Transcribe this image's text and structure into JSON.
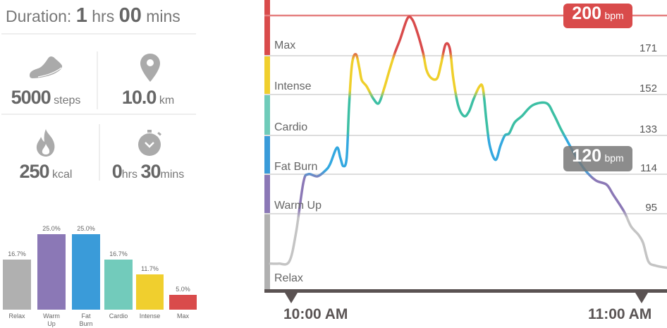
{
  "duration": {
    "label": "Duration:",
    "hours": "1",
    "hours_unit": "hrs",
    "minutes": "00",
    "minutes_unit": "mins"
  },
  "stats": [
    {
      "icon": "shoe-icon",
      "value": "5000",
      "unit": "steps"
    },
    {
      "icon": "location-pin-icon",
      "value": "10.0",
      "unit": "km"
    },
    {
      "icon": "flame-icon",
      "value": "250",
      "unit": "kcal"
    },
    {
      "icon": "stopwatch-icon",
      "hours": "0",
      "hours_unit": "hrs",
      "minutes": "30",
      "minutes_unit": "mins"
    }
  ],
  "chart_data": [
    {
      "type": "bar",
      "categories": [
        "Relax",
        "Warm Up",
        "Fat Burn",
        "Cardio",
        "Intense",
        "Max"
      ],
      "values": [
        16.7,
        25.0,
        25.0,
        16.7,
        11.7,
        5.0
      ],
      "labels": [
        "16.7%",
        "25.0%",
        "25.0%",
        "16.7%",
        "11.7%",
        "5.0%"
      ],
      "colors": [
        "#b0b0b0",
        "#8b78b6",
        "#3a9bd9",
        "#72cbbb",
        "#f0cf2e",
        "#d94b4b"
      ],
      "ylim": [
        0,
        25
      ]
    },
    {
      "type": "line",
      "zones": [
        {
          "name": "Max",
          "color": "#d94b4b",
          "upper": 200,
          "lower": 171
        },
        {
          "name": "Intense",
          "color": "#f0cf2e",
          "upper": 171,
          "lower": 152
        },
        {
          "name": "Cardio",
          "color": "#6fcbb9",
          "upper": 152,
          "lower": 133
        },
        {
          "name": "Fat Burn",
          "color": "#3a9bd9",
          "upper": 133,
          "lower": 114
        },
        {
          "name": "Warm Up",
          "color": "#8b78b6",
          "upper": 114,
          "lower": 95
        },
        {
          "name": "Relax",
          "color": "#b0b0b0",
          "upper": 95,
          "lower": 58
        }
      ],
      "y_ticks": [
        "171",
        "152",
        "133",
        "114",
        "95"
      ],
      "max_marker": {
        "value": "200",
        "unit": "bpm",
        "color": "#d94b4b"
      },
      "current_marker": {
        "value": "120",
        "unit": "bpm",
        "color": "#8a8a8a"
      },
      "x_ticks": [
        "10:00 AM",
        "11:00 AM"
      ],
      "points": [
        [
          "09:56:24",
          71
        ],
        [
          "09:57:50",
          71
        ],
        [
          "09:59:40",
          72
        ],
        [
          "10:00:50",
          86
        ],
        [
          "10:02:05",
          110
        ],
        [
          "10:02:55",
          114
        ],
        [
          "10:04:30",
          113
        ],
        [
          "10:05:55",
          116
        ],
        [
          "10:06:40",
          119
        ],
        [
          "10:07:50",
          127
        ],
        [
          "10:08:25",
          122
        ],
        [
          "10:08:55",
          118
        ],
        [
          "10:09:30",
          122
        ],
        [
          "10:09:55",
          147
        ],
        [
          "10:10:25",
          167
        ],
        [
          "10:11:05",
          172
        ],
        [
          "10:11:40",
          165
        ],
        [
          "10:12:05",
          159
        ],
        [
          "10:12:55",
          156
        ],
        [
          "10:14:05",
          150
        ],
        [
          "10:15:00",
          148
        ],
        [
          "10:15:55",
          155
        ],
        [
          "10:16:50",
          164
        ],
        [
          "10:17:45",
          173
        ],
        [
          "10:18:40",
          183
        ],
        [
          "10:19:55",
          198
        ],
        [
          "10:20:45",
          197
        ],
        [
          "10:21:35",
          188
        ],
        [
          "10:22:35",
          173
        ],
        [
          "10:23:10",
          164
        ],
        [
          "10:24:00",
          160
        ],
        [
          "10:25:00",
          160
        ],
        [
          "10:25:40",
          167
        ],
        [
          "10:26:25",
          179
        ],
        [
          "10:27:10",
          176
        ],
        [
          "10:27:45",
          160
        ],
        [
          "10:28:35",
          147
        ],
        [
          "10:29:35",
          142
        ],
        [
          "10:30:25",
          144
        ],
        [
          "10:31:15",
          150
        ],
        [
          "10:32:15",
          156
        ],
        [
          "10:32:50",
          155
        ],
        [
          "10:33:25",
          140
        ],
        [
          "10:34:00",
          128
        ],
        [
          "10:35:00",
          121
        ],
        [
          "10:35:50",
          128
        ],
        [
          "10:36:35",
          133
        ],
        [
          "10:37:20",
          134
        ],
        [
          "10:38:15",
          139
        ],
        [
          "10:39:30",
          142
        ],
        [
          "10:41:20",
          147
        ],
        [
          "10:43:42",
          148
        ],
        [
          "10:44:55",
          143
        ],
        [
          "10:46:10",
          136
        ],
        [
          "10:47:20",
          130
        ],
        [
          "10:48:30",
          124
        ],
        [
          "10:50:20",
          116
        ],
        [
          "10:52:10",
          111
        ],
        [
          "10:54:00",
          109
        ],
        [
          "10:55:10",
          104
        ],
        [
          "10:57:00",
          96
        ],
        [
          "10:58:10",
          89
        ],
        [
          "10:59:25",
          85
        ],
        [
          "11:00:15",
          81
        ],
        [
          "11:01:10",
          72
        ],
        [
          "11:02:25",
          70
        ],
        [
          "11:04:20",
          69
        ]
      ]
    }
  ]
}
